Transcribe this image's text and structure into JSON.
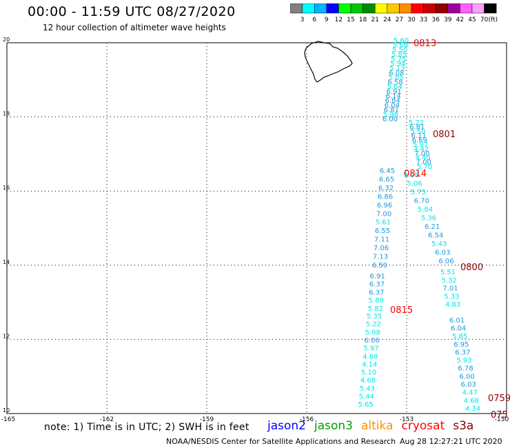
{
  "title": "00:00 - 11:59 UTC 08/27/2020",
  "subtitle": "12 hour collection of altimeter wave heights",
  "colorbar": {
    "labels": [
      "3",
      "6",
      "9",
      "12",
      "15",
      "18",
      "21",
      "24",
      "27",
      "30",
      "33",
      "36",
      "39",
      "42",
      "45",
      "70"
    ],
    "unit": "(ft)",
    "colors": [
      "#808080",
      "#00ffff",
      "#00b4ff",
      "#0000ff",
      "#00ff00",
      "#00c800",
      "#008c00",
      "#ffff00",
      "#ffc800",
      "#ff8c00",
      "#ff0000",
      "#c80000",
      "#8c0000",
      "#a000a0",
      "#ff60ff",
      "#ffa0ff",
      "#000000"
    ]
  },
  "map": {
    "lon_ticks": [
      "-165",
      "-162",
      "-159",
      "-156",
      "-153",
      "-150"
    ],
    "lat_ticks": [
      "20",
      "18",
      "16",
      "14",
      "12",
      "10"
    ]
  },
  "tracks": [
    {
      "time_label": "0813",
      "label_color": "#ff0000",
      "points": [
        {
          "v": "5.60",
          "c": "#00e6e6"
        },
        {
          "v": "5.68",
          "c": "#00e6e6"
        },
        {
          "v": "5.50",
          "c": "#00e6e6"
        },
        {
          "v": "5.85",
          "c": "#00e6e6"
        },
        {
          "v": "5.75",
          "c": "#00e6e6"
        },
        {
          "v": "5.94",
          "c": "#00e6e6"
        },
        {
          "v": "5.13",
          "c": "#00e6e6"
        },
        {
          "v": "6.08",
          "c": "#1e96dc"
        },
        {
          "v": "5.85",
          "c": "#00e6e6"
        },
        {
          "v": "6.58",
          "c": "#1e96dc"
        },
        {
          "v": "5.64",
          "c": "#00e6e6"
        },
        {
          "v": "6.91",
          "c": "#1e96dc"
        },
        {
          "v": "6.14",
          "c": "#1e96dc"
        },
        {
          "v": "6.84",
          "c": "#1e96dc"
        },
        {
          "v": "6.04",
          "c": "#1e96dc"
        },
        {
          "v": "6.81",
          "c": "#1e96dc"
        },
        {
          "v": "5.96",
          "c": "#00e6e6"
        },
        {
          "v": "6.00",
          "c": "#1e96dc"
        }
      ]
    },
    {
      "time_label": "0801",
      "label_color": "#8b0000",
      "points": [
        {
          "v": "5.22",
          "c": "#00e6e6"
        },
        {
          "v": "6.81",
          "c": "#1e96dc"
        },
        {
          "v": "5.50",
          "c": "#00e6e6"
        },
        {
          "v": "6.11",
          "c": "#1e96dc"
        },
        {
          "v": "6.69",
          "c": "#1e96dc"
        },
        {
          "v": "5.97",
          "c": "#00e6e6"
        },
        {
          "v": "4.42",
          "c": "#00e6e6"
        },
        {
          "v": "7.00",
          "c": "#1e96dc"
        },
        {
          "v": "4.40",
          "c": "#00e6e6"
        },
        {
          "v": "7.00",
          "c": "#1e96dc"
        },
        {
          "v": "5.70",
          "c": "#00e6e6"
        }
      ]
    },
    {
      "time_label": "0814",
      "label_color": "#ff0000",
      "points": [
        {
          "v": "6.45",
          "c": "#1e96dc"
        },
        {
          "v": "5.58",
          "c": "#00e6e6"
        },
        {
          "v": "6.65",
          "c": "#1e96dc"
        },
        {
          "v": "5.06",
          "c": "#00e6e6"
        },
        {
          "v": "6.32",
          "c": "#1e96dc"
        },
        {
          "v": "5.75",
          "c": "#00e6e6"
        },
        {
          "v": "6.86",
          "c": "#1e96dc"
        },
        {
          "v": "6.70",
          "c": "#1e96dc"
        },
        {
          "v": "6.96",
          "c": "#1e96dc"
        },
        {
          "v": "5.84",
          "c": "#00e6e6"
        },
        {
          "v": "7.00",
          "c": "#1e96dc"
        },
        {
          "v": "5.36",
          "c": "#00e6e6"
        },
        {
          "v": "5.61",
          "c": "#00e6e6"
        },
        {
          "v": "6.21",
          "c": "#1e96dc"
        },
        {
          "v": "6.55",
          "c": "#1e96dc"
        },
        {
          "v": "6.54",
          "c": "#1e96dc"
        },
        {
          "v": "7.11",
          "c": "#1e96dc"
        },
        {
          "v": "5.43",
          "c": "#00e6e6"
        },
        {
          "v": "7.06",
          "c": "#1e96dc"
        },
        {
          "v": "6.03",
          "c": "#1e96dc"
        },
        {
          "v": "7.13",
          "c": "#1e96dc"
        },
        {
          "v": "6.06",
          "c": "#1e96dc"
        },
        {
          "v": "6.59",
          "c": "#1e96dc"
        }
      ]
    },
    {
      "time_label": "0800",
      "label_color": "#8b0000",
      "points": [
        {
          "v": "5.51",
          "c": "#00e6e6"
        },
        {
          "v": "6.91",
          "c": "#1e96dc"
        },
        {
          "v": "5.32",
          "c": "#00e6e6"
        },
        {
          "v": "6.37",
          "c": "#1e96dc"
        },
        {
          "v": "7.01",
          "c": "#1e96dc"
        },
        {
          "v": "6.37",
          "c": "#1e96dc"
        },
        {
          "v": "5.33",
          "c": "#00e6e6"
        },
        {
          "v": "5.89",
          "c": "#00e6e6"
        },
        {
          "v": "4.83",
          "c": "#00e6e6"
        },
        {
          "v": "5.82",
          "c": "#00e6e6"
        }
      ]
    },
    {
      "time_label": "0815",
      "label_color": "#ff0000",
      "points": [
        {
          "v": "5.35",
          "c": "#00e6e6"
        },
        {
          "v": "6.01",
          "c": "#1e96dc"
        },
        {
          "v": "5.22",
          "c": "#00e6e6"
        },
        {
          "v": "6.04",
          "c": "#1e96dc"
        },
        {
          "v": "5.98",
          "c": "#00e6e6"
        },
        {
          "v": "5.85",
          "c": "#00e6e6"
        },
        {
          "v": "6.06",
          "c": "#1e96dc"
        },
        {
          "v": "6.95",
          "c": "#1e96dc"
        },
        {
          "v": "5.97",
          "c": "#00e6e6"
        },
        {
          "v": "6.37",
          "c": "#1e96dc"
        },
        {
          "v": "4.68",
          "c": "#00e6e6"
        },
        {
          "v": "5.93",
          "c": "#00e6e6"
        },
        {
          "v": "4.14",
          "c": "#00e6e6"
        },
        {
          "v": "6.78",
          "c": "#1e96dc"
        },
        {
          "v": "5.10",
          "c": "#00e6e6"
        },
        {
          "v": "6.00",
          "c": "#1e96dc"
        },
        {
          "v": "4.68",
          "c": "#00e6e6"
        },
        {
          "v": "6.03",
          "c": "#1e96dc"
        },
        {
          "v": "5.43",
          "c": "#00e6e6"
        },
        {
          "v": "4.47",
          "c": "#00e6e6"
        },
        {
          "v": "5.44",
          "c": "#00e6e6"
        },
        {
          "v": "4.68",
          "c": "#00e6e6"
        },
        {
          "v": "5.65",
          "c": "#00e6e6"
        },
        {
          "v": "4.34",
          "c": "#00e6e6"
        }
      ]
    },
    {
      "time_label": "0759",
      "label_color": "#8b0000",
      "points": []
    },
    {
      "time_label": "075",
      "label_color": "#8b0000",
      "points": []
    }
  ],
  "note": "note: 1) Time is in UTC; 2) SWH is in feet",
  "legend": [
    {
      "name": "jason2",
      "color": "#0000ff"
    },
    {
      "name": "jason3",
      "color": "#00a000"
    },
    {
      "name": "altika",
      "color": "#ff8c00"
    },
    {
      "name": "cryosat",
      "color": "#ff0000"
    },
    {
      "name": "s3a",
      "color": "#8b0000"
    }
  ],
  "credit": "NOAA/NESDIS Center for Satellite Applications and Research",
  "timestamp": "Aug 28 12:27:21 UTC 2020"
}
